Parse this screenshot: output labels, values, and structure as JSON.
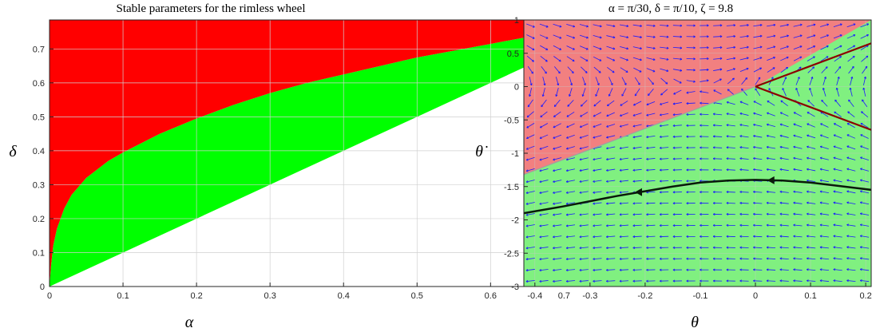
{
  "chart_data": [
    {
      "type": "area",
      "title": "Stable parameters for the rimless wheel",
      "xlabel": "α",
      "ylabel": "δ",
      "xlim": [
        0,
        0.7854
      ],
      "ylim": [
        0,
        0.7854
      ],
      "xticks": [
        "0",
        "0.1",
        "0.2",
        "0.3",
        "0.4",
        "0.5",
        "0.6",
        "0.7"
      ],
      "yticks": [
        "0",
        "0.1",
        "0.2",
        "0.3",
        "0.4",
        "0.5",
        "0.6",
        "0.7"
      ],
      "grid": true,
      "regions": [
        {
          "color": "#ff0000",
          "description_key": "above boundary"
        },
        {
          "color": "#00ff00",
          "description_key": "between boundary and diagonal"
        },
        {
          "color": "#ffffff",
          "description_key": "below diagonal"
        }
      ],
      "boundary_curve": {
        "x": [
          0,
          0.002,
          0.005,
          0.01,
          0.02,
          0.03,
          0.05,
          0.08,
          0.1,
          0.15,
          0.2,
          0.25,
          0.3,
          0.35,
          0.4,
          0.45,
          0.5,
          0.55,
          0.6,
          0.65,
          0.7,
          0.75,
          0.785
        ],
        "y": [
          0,
          0.06,
          0.12,
          0.17,
          0.23,
          0.27,
          0.32,
          0.37,
          0.395,
          0.45,
          0.495,
          0.535,
          0.57,
          0.6,
          0.625,
          0.65,
          0.675,
          0.695,
          0.715,
          0.735,
          0.752,
          0.77,
          0.785
        ]
      },
      "diagonal": {
        "x": [
          0,
          0.785
        ],
        "y": [
          0,
          0.785
        ]
      }
    },
    {
      "type": "quiver",
      "title": "α = π/30,    δ = π/10,    ζ = 9.8",
      "xlabel": "θ",
      "ylabel": "θ̇",
      "xlim": [
        -0.42,
        0.21
      ],
      "ylim": [
        -3,
        1
      ],
      "xticks": [
        "-0.4",
        "-0.3",
        "-0.2",
        "-0.1",
        "0",
        "0.1",
        "0.2"
      ],
      "yticks": [
        "-3",
        "-2.5",
        "-2",
        "-1.5",
        "-1",
        "-0.5",
        "0",
        "0.5",
        "1"
      ],
      "grid": true,
      "colors": {
        "red_region": "#f28080",
        "green_region": "#80f080",
        "arrows": "#1a1aff",
        "boundary": "#8b0000",
        "trajectory": "#0a1a0a"
      },
      "boundary_lines": [
        {
          "x": [
            -0.42,
            0
          ],
          "y": [
            -1.32,
            0
          ]
        },
        {
          "x": [
            0,
            0.21
          ],
          "y": [
            0,
            0.65
          ]
        },
        {
          "x": [
            0,
            0.21
          ],
          "y": [
            0,
            -0.65
          ]
        }
      ],
      "trajectory": {
        "x": [
          -0.42,
          -0.35,
          -0.3,
          -0.25,
          -0.2,
          -0.15,
          -0.1,
          -0.05,
          0,
          0.05,
          0.1,
          0.15,
          0.21
        ],
        "y": [
          -1.9,
          -1.8,
          -1.72,
          -1.64,
          -1.57,
          -1.5,
          -1.44,
          -1.41,
          -1.4,
          -1.41,
          -1.44,
          -1.49,
          -1.55
        ]
      },
      "trajectory_arrows_at_x": [
        0.03,
        -0.21
      ],
      "field": {
        "zeta": 9.8,
        "alpha": 0.10472
      }
    }
  ]
}
